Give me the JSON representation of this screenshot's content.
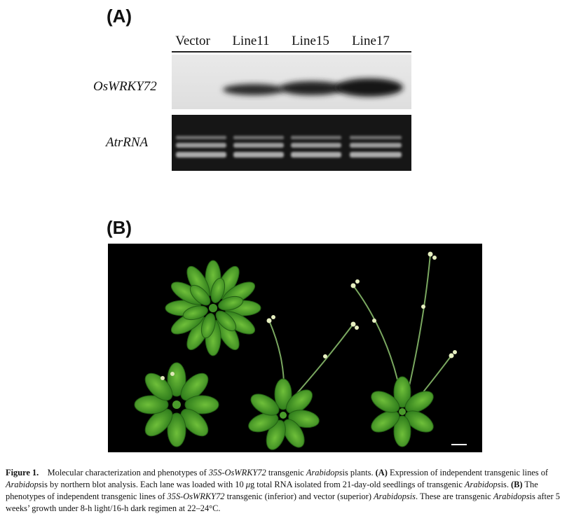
{
  "panel_a": {
    "label": "(A)",
    "lanes": [
      "Vector",
      "Line11",
      "Line15",
      "Line17"
    ],
    "rows": [
      "OsWRKY72",
      "AtrRNA"
    ]
  },
  "panel_b": {
    "label": "(B)"
  },
  "caption": {
    "figure_label": "Figure 1.",
    "p1": "Molecular characterization and phenotypes of ",
    "construct": "35S-OsWRKY72",
    "p2": " transgenic ",
    "species_stem": "Arabidops",
    "p3": "is plants. ",
    "a_label": "(A)",
    "p4": " Expression of independent transgenic lines of ",
    "p5": "is by northern blot analysis. Each lane was loaded with 10 ",
    "mu": "μ",
    "p6": "g total RNA isolated from 21-day-old seedlings of transgenic ",
    "p7": "is. ",
    "b_label": "(B)",
    "p8": " The phenotypes of independent transgenic lines of ",
    "p9": " transgenic (inferior) and vector (superior) ",
    "species_full": "Arabidopsis",
    "p10": ". These are transgenic ",
    "p11": "is after 5 weeks’ growth under 8-h light/16-h dark regimen at 22–24°C."
  }
}
